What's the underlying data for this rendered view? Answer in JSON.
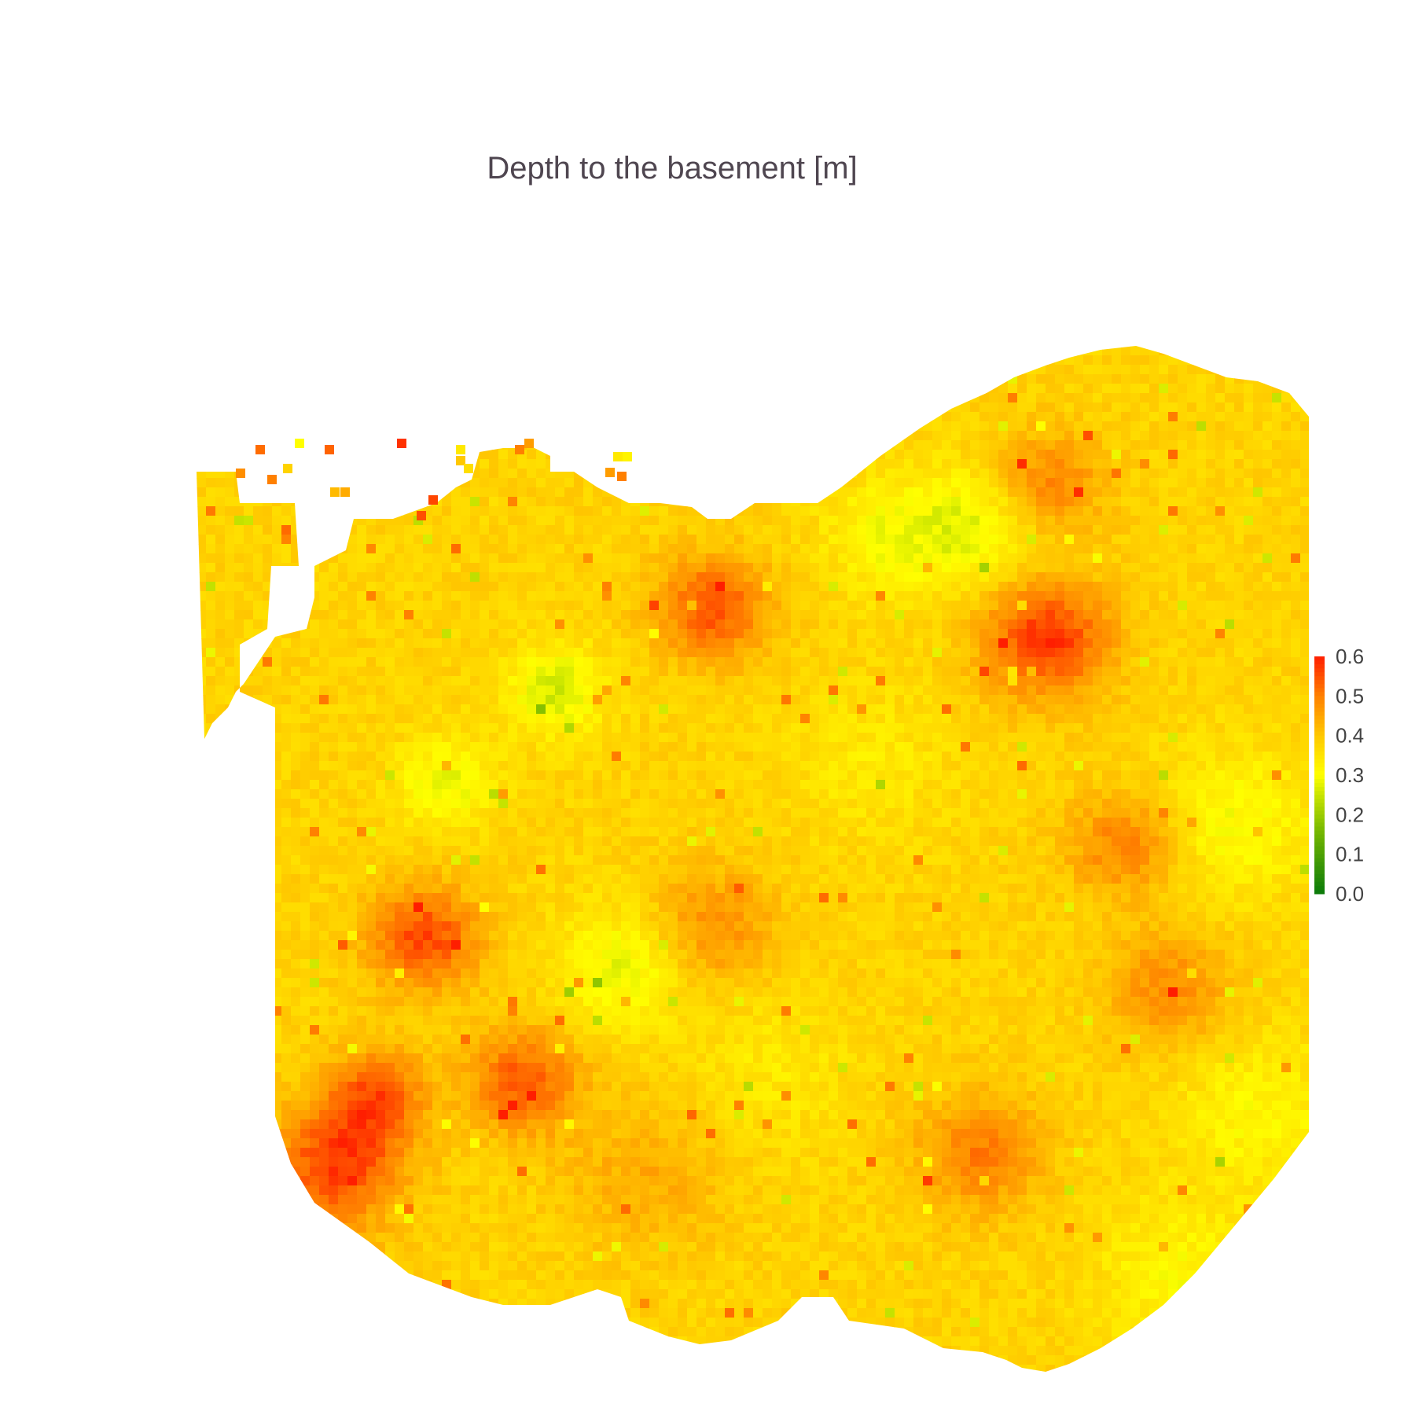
{
  "chart_data": {
    "type": "heatmap",
    "title": "Depth to the basement [m]",
    "xlabel": "",
    "ylabel": "",
    "axes_visible": false,
    "grid": false,
    "legend": "colorbar-right",
    "colorbar": {
      "range": [
        0,
        0.6
      ],
      "ticks": [
        "0.0",
        "0.1",
        "0.2",
        "0.3",
        "0.4",
        "0.5",
        "0.6"
      ],
      "colorscale": [
        {
          "value": 0.0,
          "color": "#0a7a0a"
        },
        {
          "value": 0.15,
          "color": "#6fb400"
        },
        {
          "value": 0.25,
          "color": "#c8e400"
        },
        {
          "value": 0.3,
          "color": "#ffff00"
        },
        {
          "value": 0.4,
          "color": "#ffc800"
        },
        {
          "value": 0.5,
          "color": "#ff8000"
        },
        {
          "value": 0.6,
          "color": "#ff1e00"
        }
      ]
    },
    "field": {
      "background_value": 0.38,
      "hotspots": [
        {
          "x": 0.13,
          "y": 0.78,
          "value": 0.55,
          "spread": 0.04
        },
        {
          "x": 0.07,
          "y": 0.85,
          "value": 0.48,
          "spread": 0.05
        },
        {
          "x": 0.2,
          "y": 0.57,
          "value": 0.56,
          "spread": 0.035
        },
        {
          "x": 0.16,
          "y": 0.72,
          "value": 0.52,
          "spread": 0.03
        },
        {
          "x": 0.22,
          "y": 0.42,
          "value": 0.28,
          "spread": 0.03
        },
        {
          "x": 0.29,
          "y": 0.71,
          "value": 0.54,
          "spread": 0.035
        },
        {
          "x": 0.32,
          "y": 0.33,
          "value": 0.26,
          "spread": 0.03
        },
        {
          "x": 0.38,
          "y": 0.6,
          "value": 0.28,
          "spread": 0.04
        },
        {
          "x": 0.46,
          "y": 0.56,
          "value": 0.48,
          "spread": 0.04
        },
        {
          "x": 0.46,
          "y": 0.25,
          "value": 0.55,
          "spread": 0.035
        },
        {
          "x": 0.51,
          "y": 0.7,
          "value": 0.34,
          "spread": 0.05
        },
        {
          "x": 0.76,
          "y": 0.28,
          "value": 0.58,
          "spread": 0.04
        },
        {
          "x": 0.7,
          "y": 0.17,
          "value": 0.28,
          "spread": 0.04
        },
        {
          "x": 0.83,
          "y": 0.48,
          "value": 0.5,
          "spread": 0.035
        },
        {
          "x": 0.87,
          "y": 0.62,
          "value": 0.48,
          "spread": 0.04
        },
        {
          "x": 0.93,
          "y": 0.46,
          "value": 0.3,
          "spread": 0.05
        },
        {
          "x": 0.95,
          "y": 0.74,
          "value": 0.31,
          "spread": 0.05
        },
        {
          "x": 0.7,
          "y": 0.78,
          "value": 0.5,
          "spread": 0.04
        },
        {
          "x": 0.76,
          "y": 0.13,
          "value": 0.5,
          "spread": 0.035
        },
        {
          "x": 0.6,
          "y": 0.4,
          "value": 0.34,
          "spread": 0.05
        },
        {
          "x": 0.62,
          "y": 0.18,
          "value": 0.3,
          "spread": 0.04
        },
        {
          "x": 0.4,
          "y": 0.8,
          "value": 0.44,
          "spread": 0.05
        },
        {
          "x": 0.88,
          "y": 0.9,
          "value": 0.31,
          "spread": 0.05
        }
      ]
    }
  }
}
